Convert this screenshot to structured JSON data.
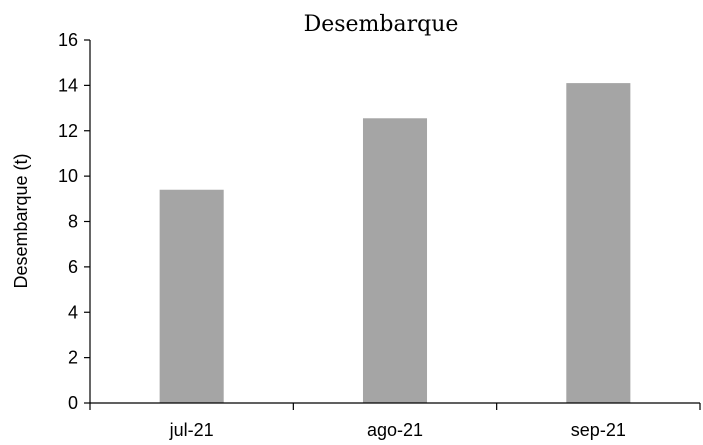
{
  "chart_data": {
    "type": "bar",
    "title": "Desembarque",
    "xlabel": "",
    "ylabel": "Desembarque (t)",
    "categories": [
      "jul-21",
      "ago-21",
      "sep-21"
    ],
    "values": [
      9.4,
      12.55,
      14.1
    ],
    "ylim": [
      0,
      16
    ],
    "yticks": [
      0,
      2,
      4,
      6,
      8,
      10,
      12,
      14,
      16
    ],
    "bar_color": "#a5a5a5",
    "grid": false,
    "legend": "none"
  }
}
